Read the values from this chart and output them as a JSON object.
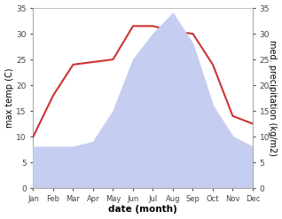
{
  "months": [
    "Jan",
    "Feb",
    "Mar",
    "Apr",
    "May",
    "Jun",
    "Jul",
    "Aug",
    "Sep",
    "Oct",
    "Nov",
    "Dec"
  ],
  "temperature": [
    10,
    18,
    24,
    24.5,
    25,
    31.5,
    31.5,
    30.5,
    30,
    24,
    14,
    12.5
  ],
  "precipitation": [
    8,
    8,
    8,
    9,
    15,
    25,
    30,
    34,
    28,
    16,
    10,
    8
  ],
  "temp_color": "#cc3333",
  "precip_color": "#c5cef0",
  "left_ylabel": "max temp (C)",
  "right_ylabel": "med. precipitation (kg/m2)",
  "xlabel": "date (month)",
  "ylim": [
    0,
    35
  ],
  "yticks": [
    0,
    5,
    10,
    15,
    20,
    25,
    30,
    35
  ],
  "bg_color": "#ffffff",
  "fig_bg_color": "#ffffff",
  "spine_color": "#aaaaaa",
  "tick_color": "#444444",
  "right_tick_labels": [
    "0",
    "5",
    "10",
    "15",
    "20",
    "25",
    "30",
    "35"
  ]
}
